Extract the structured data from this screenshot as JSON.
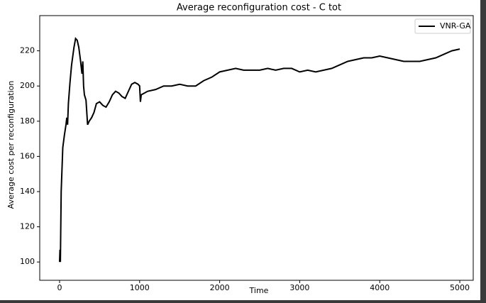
{
  "chart_data": {
    "type": "line",
    "title": "Average reconfiguration cost - C tot",
    "xlabel": "Time",
    "ylabel": "Average cost per reconfiguration",
    "x": [
      0,
      5,
      10,
      20,
      40,
      60,
      80,
      90,
      100,
      110,
      120,
      130,
      150,
      180,
      200,
      220,
      240,
      260,
      280,
      290,
      300,
      310,
      330,
      350,
      370,
      400,
      430,
      460,
      500,
      540,
      580,
      620,
      660,
      700,
      740,
      780,
      820,
      860,
      900,
      940,
      980,
      1000,
      1010,
      1020,
      1100,
      1200,
      1300,
      1400,
      1500,
      1600,
      1700,
      1800,
      1900,
      2000,
      2100,
      2200,
      2300,
      2400,
      2500,
      2600,
      2700,
      2800,
      2900,
      3000,
      3100,
      3200,
      3300,
      3400,
      3500,
      3600,
      3700,
      3800,
      3900,
      4000,
      4100,
      4200,
      4300,
      4400,
      4500,
      4600,
      4700,
      4800,
      4900,
      5000
    ],
    "series": [
      {
        "name": "VNR-GA",
        "color": "#000000",
        "values": [
          100,
          107,
          100,
          140,
          165,
          172,
          178,
          182,
          178,
          190,
          196,
          202,
          212,
          222,
          227,
          226,
          222,
          215,
          207,
          214,
          200,
          195,
          192,
          178,
          180,
          182,
          185,
          190,
          191,
          189,
          188,
          191,
          195,
          197,
          196,
          194,
          193,
          197,
          201,
          202,
          201,
          200,
          191,
          195,
          197,
          198,
          200,
          200,
          201,
          200,
          200,
          203,
          205,
          208,
          209,
          210,
          209,
          209,
          209,
          210,
          209,
          210,
          210,
          208,
          209,
          208,
          209,
          210,
          212,
          214,
          215,
          216,
          216,
          217,
          216,
          215,
          214,
          214,
          214,
          215,
          216,
          218,
          220,
          221
        ]
      }
    ],
    "xlim": [
      -248,
      5168
    ],
    "ylim": [
      89.6,
      240
    ],
    "xticks": [
      0,
      1000,
      2000,
      3000,
      4000,
      5000
    ],
    "yticks": [
      100,
      120,
      140,
      160,
      180,
      200,
      220
    ],
    "legend": "upper right"
  }
}
